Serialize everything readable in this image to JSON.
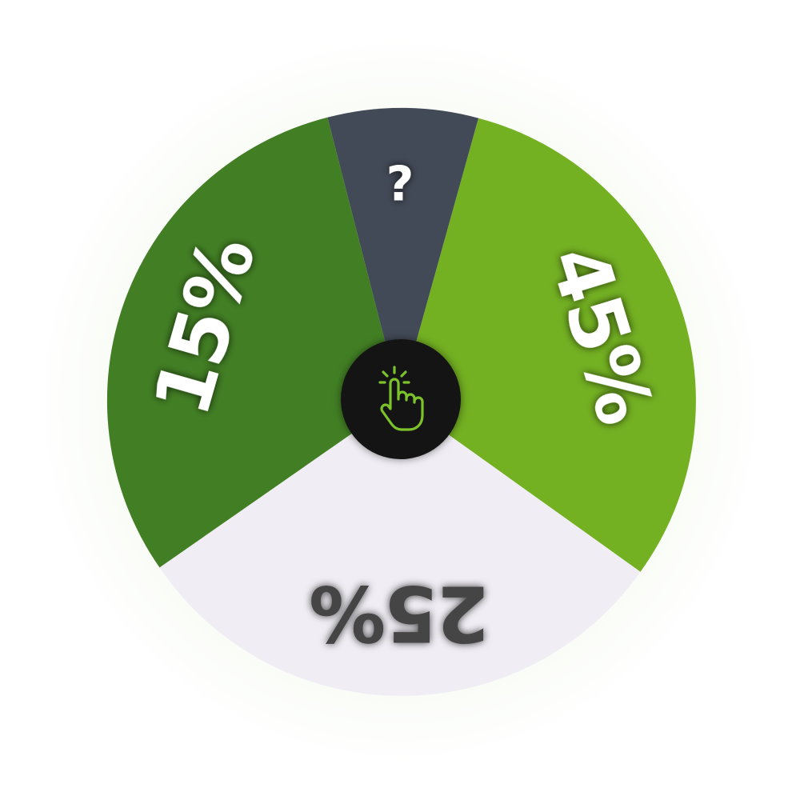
{
  "wheel": {
    "segments": [
      {
        "label": "?",
        "color": "#434a57",
        "text_color": "#ffffff"
      },
      {
        "label": "45%",
        "color": "#73b022",
        "text_color": "#ffffff"
      },
      {
        "label": "25%",
        "color": "#f0eef4",
        "text_color": "#444444"
      },
      {
        "label": "15%",
        "color": "#427f24",
        "text_color": "#ffffff"
      }
    ],
    "spin_button": {
      "icon": "tap-hand-icon",
      "background": "#141414",
      "icon_color": "#7cc22a"
    }
  }
}
